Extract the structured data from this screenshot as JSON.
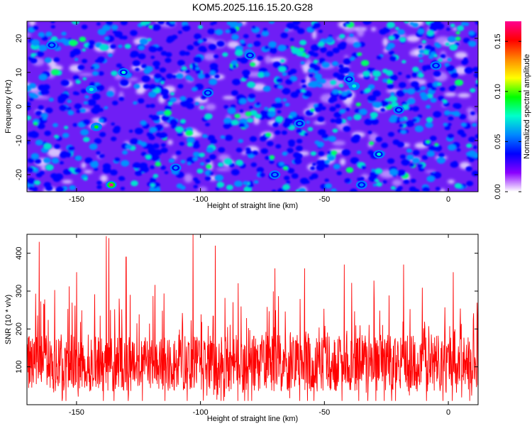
{
  "title": "KOM5.2025.116.15.20.G28",
  "chart_data": [
    {
      "type": "heatmap",
      "xlabel": "Height of straight line (km)",
      "ylabel": "Frequency (Hz)",
      "xlim": [
        -170,
        12
      ],
      "ylim": [
        -25,
        25
      ],
      "xticks": [
        -150,
        -100,
        -50,
        0
      ],
      "yticks": [
        -20,
        -10,
        0,
        10,
        20
      ],
      "colorbar": {
        "label": "Normalized spectral amplitude",
        "range": [
          0,
          0.17
        ],
        "ticks": [
          "0.00",
          "0.05",
          "0.10",
          "0.15"
        ],
        "tick_values": [
          0,
          0.05,
          0.1,
          0.15
        ],
        "colors": [
          "#ffffff",
          "#8a00ff",
          "#0000ff",
          "#0088ff",
          "#00ffcc",
          "#00ff00",
          "#ffff00",
          "#ff8800",
          "#ff0000",
          "#ff0090"
        ]
      },
      "background_color": "#6f1ef5",
      "peaks": [
        {
          "x": -136,
          "y": -23,
          "value": 0.17
        },
        {
          "x": -142,
          "y": -6,
          "value": 0.1
        },
        {
          "x": -144,
          "y": 5,
          "value": 0.08
        },
        {
          "x": -38,
          "y": 6,
          "value": 0.08
        },
        {
          "x": -28,
          "y": -14,
          "value": 0.07
        },
        {
          "x": -131,
          "y": 10,
          "value": 0.07
        },
        {
          "x": -97,
          "y": 4,
          "value": 0.06
        },
        {
          "x": -40,
          "y": 8,
          "value": 0.06
        },
        {
          "x": -20,
          "y": -1,
          "value": 0.06
        },
        {
          "x": -60,
          "y": -5,
          "value": 0.05
        },
        {
          "x": -110,
          "y": -18,
          "value": 0.05
        },
        {
          "x": -80,
          "y": 15,
          "value": 0.05
        },
        {
          "x": -5,
          "y": 12,
          "value": 0.05
        },
        {
          "x": -160,
          "y": 18,
          "value": 0.05
        },
        {
          "x": -35,
          "y": -23,
          "value": 0.05
        },
        {
          "x": -70,
          "y": -20,
          "value": 0.05
        }
      ]
    },
    {
      "type": "line",
      "xlabel": "Height of straight line (km)",
      "ylabel": "SNR (10 * v/v)",
      "xlim": [
        -170,
        12
      ],
      "ylim": [
        0,
        450
      ],
      "xticks": [
        -150,
        -100,
        -50,
        0
      ],
      "yticks": [
        100,
        200,
        300,
        400
      ],
      "color": "#ff0000",
      "base_level": 110,
      "peaks": [
        {
          "x": -165,
          "y": 430
        },
        {
          "x": -138,
          "y": 445
        },
        {
          "x": -137,
          "y": 440
        },
        {
          "x": -103,
          "y": 450
        },
        {
          "x": -94,
          "y": 420
        },
        {
          "x": -70,
          "y": 360
        },
        {
          "x": -58,
          "y": 360
        },
        {
          "x": -42,
          "y": 370
        },
        {
          "x": -18,
          "y": 370
        },
        {
          "x": 2,
          "y": 350
        },
        {
          "x": -130,
          "y": 390
        },
        {
          "x": -150,
          "y": 350
        }
      ]
    }
  ]
}
